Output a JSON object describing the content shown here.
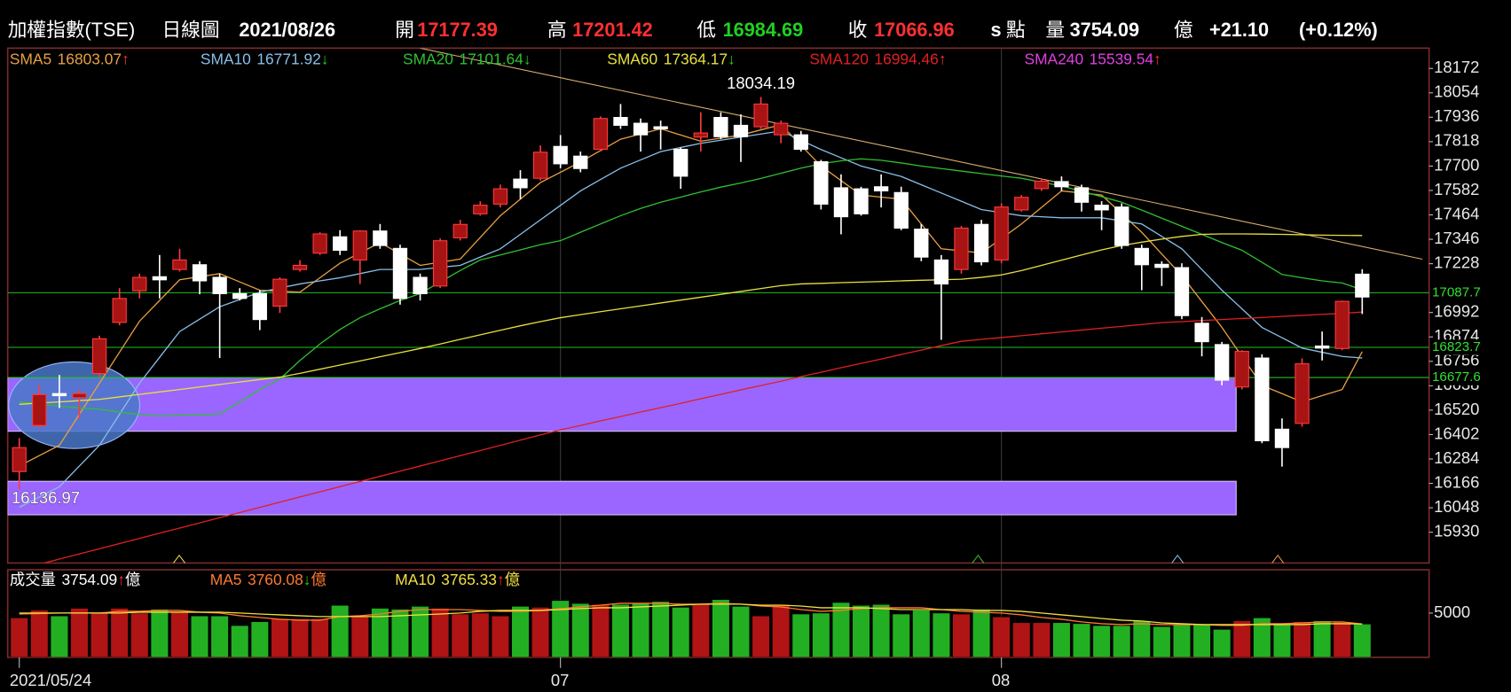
{
  "header": {
    "title": "加權指數(TSE)",
    "period": "日線圖",
    "date": "2021/08/26",
    "open_label": "開",
    "high_label": "高",
    "low_label": "低",
    "close_label": "收",
    "s_label": "s",
    "unit_label": "點",
    "volume_label": "量",
    "volume_unit": "億",
    "change": "+21.10",
    "change_pct": "(+0.12%)"
  },
  "chart_data": [
    {
      "type": "candlestick",
      "categories": [
        "2021/05/24",
        null,
        null,
        null,
        null,
        null,
        null,
        null,
        null,
        null,
        null,
        null,
        null,
        null,
        null,
        null,
        null,
        null,
        null,
        null,
        null,
        null,
        null,
        null,
        null,
        null,
        null,
        "07",
        null,
        null,
        null,
        null,
        null,
        null,
        null,
        null,
        null,
        null,
        null,
        null,
        null,
        null,
        null,
        null,
        null,
        null,
        null,
        null,
        null,
        "08",
        null,
        null,
        null,
        null,
        null,
        null,
        null,
        null,
        null,
        null,
        null,
        null,
        null,
        null,
        null,
        null,
        null,
        null
      ],
      "open": [
        16223,
        16446,
        16600,
        16580,
        16697,
        16944,
        17097,
        17165,
        17200,
        17223,
        17162,
        17083,
        17083,
        17023,
        17200,
        17279,
        17358,
        17246,
        17386,
        17302,
        17162,
        17120,
        17353,
        17469,
        17516,
        17637,
        17641,
        17795,
        17748,
        17781,
        17935,
        17907,
        17890,
        17781,
        17840,
        17935,
        17897,
        17890,
        17851,
        17851,
        17721,
        17595,
        17590,
        17600,
        17572,
        17395,
        17246,
        17200,
        17418,
        17246,
        17488,
        17591,
        17625,
        17595,
        17511,
        17502,
        17302,
        17225,
        17209,
        16940,
        16837,
        16632,
        16772,
        16428,
        16456,
        16830,
        16818,
        17177.39
      ],
      "high": [
        16385,
        16641,
        16690,
        16620,
        16880,
        17110,
        17180,
        17270,
        17300,
        17240,
        17180,
        17110,
        17100,
        17162,
        17245,
        17380,
        17390,
        17390,
        17420,
        17320,
        17180,
        17350,
        17440,
        17530,
        17610,
        17680,
        17800,
        17850,
        17770,
        17940,
        18000,
        17930,
        17920,
        17790,
        17960,
        17960,
        17950,
        18034.19,
        17920,
        17870,
        17730,
        17660,
        17600,
        17660,
        17600,
        17420,
        17270,
        17410,
        17440,
        17520,
        17560,
        17640,
        17650,
        17610,
        17530,
        17520,
        17320,
        17240,
        17230,
        16970,
        16850,
        16810,
        16790,
        16480,
        16770,
        16900,
        17050,
        17201.42
      ],
      "low": [
        16136.97,
        16432,
        16530,
        16480,
        16680,
        16930,
        17060,
        17060,
        17190,
        17080,
        16772,
        17050,
        16907,
        16990,
        17190,
        17270,
        17270,
        17130,
        17300,
        17030,
        17050,
        17110,
        17340,
        17460,
        17500,
        17540,
        17630,
        17690,
        17670,
        17770,
        17880,
        17770,
        17780,
        17590,
        17770,
        17830,
        17720,
        17880,
        17810,
        17770,
        17490,
        17370,
        17460,
        17500,
        17390,
        17240,
        16860,
        17180,
        17220,
        17230,
        17480,
        17580,
        17580,
        17480,
        17390,
        17300,
        17100,
        17120,
        16960,
        16780,
        16640,
        16620,
        16360,
        16247,
        16440,
        16760,
        16810,
        16984.69
      ],
      "close": [
        16339,
        16595,
        16590,
        16600,
        16865,
        17060,
        17162,
        17150,
        17246,
        17145,
        17083,
        17060,
        16958,
        17153,
        17220,
        17372,
        17293,
        17386,
        17316,
        17060,
        17083,
        17339,
        17418,
        17511,
        17590,
        17595,
        17767,
        17711,
        17688,
        17930,
        17897,
        17851,
        17880,
        17651,
        17860,
        17842,
        17842,
        18000,
        17907,
        17781,
        17516,
        17455,
        17469,
        17580,
        17400,
        17260,
        17130,
        17400,
        17237,
        17502,
        17549,
        17627,
        17600,
        17525,
        17488,
        17316,
        17223,
        17210,
        16977,
        16851,
        16665,
        16804,
        16372,
        16339,
        16744,
        16820,
        17046,
        17066.96
      ],
      "up_color": "#a81414",
      "up_edge": "#ff3a3a",
      "down_color": "#ffffff",
      "ylim": [
        15781,
        18270
      ],
      "yticks": [
        15930,
        16048,
        16166,
        16284,
        16402,
        16520,
        16638,
        16756,
        16874,
        16992,
        17228,
        17346,
        17464,
        17582,
        17700,
        17818,
        17936,
        18054,
        18172
      ],
      "moving_averages": [
        {
          "name": "SMA5",
          "color": "#e8a040",
          "arrow": {
            "text": "↑",
            "color": "#ff3030"
          },
          "values": [
            16250,
            16300,
            16350,
            16500,
            16650,
            16800,
            16950,
            17050,
            17150,
            17165,
            17180,
            17140,
            17100,
            17095,
            17090,
            17160,
            17230,
            17280,
            17330,
            17275,
            17220,
            17235,
            17250,
            17355,
            17460,
            17540,
            17620,
            17670,
            17720,
            17775,
            17830,
            17855,
            17880,
            17850,
            17820,
            17835,
            17850,
            17875,
            17900,
            17800,
            17700,
            17630,
            17560,
            17550,
            17540,
            17420,
            17300,
            17290,
            17280,
            17350,
            17420,
            17500,
            17580,
            17570,
            17560,
            17470,
            17380,
            17275,
            17170,
            17045,
            16920,
            16780,
            16640,
            16600,
            16560,
            16590,
            16620,
            16803.07
          ]
        },
        {
          "name": "SMA10",
          "color": "#88bfe8",
          "arrow": {
            "text": "↓",
            "color": "#20d020"
          },
          "values": [
            16050,
            16100,
            16150,
            16250,
            16350,
            16500,
            16650,
            16775,
            16900,
            16960,
            17020,
            17055,
            17090,
            17110,
            17130,
            17145,
            17160,
            17180,
            17200,
            17200,
            17200,
            17210,
            17220,
            17260,
            17300,
            17370,
            17440,
            17510,
            17580,
            17635,
            17690,
            17730,
            17770,
            17790,
            17810,
            17825,
            17840,
            17855,
            17870,
            17825,
            17780,
            17740,
            17700,
            17675,
            17650,
            17610,
            17570,
            17530,
            17490,
            17475,
            17460,
            17455,
            17450,
            17450,
            17450,
            17435,
            17420,
            17360,
            17300,
            17200,
            17100,
            17010,
            16920,
            16870,
            16820,
            16800,
            16780,
            16771.92
          ]
        },
        {
          "name": "SMA20",
          "color": "#30c030",
          "arrow": {
            "text": "↓",
            "color": "#20d020"
          },
          "values": [
            16560,
            16550,
            16540,
            16530,
            16525,
            16510,
            16500,
            16493,
            16495,
            16498,
            16502,
            16560,
            16620,
            16670,
            16760,
            16840,
            16910,
            16967,
            17010,
            17050,
            17083,
            17140,
            17195,
            17246,
            17270,
            17295,
            17320,
            17339,
            17380,
            17420,
            17460,
            17495,
            17525,
            17550,
            17575,
            17598,
            17618,
            17640,
            17665,
            17690,
            17711,
            17725,
            17735,
            17728,
            17715,
            17700,
            17688,
            17676,
            17664,
            17652,
            17641,
            17622,
            17604,
            17578,
            17552,
            17525,
            17487,
            17448,
            17409,
            17370,
            17330,
            17293,
            17235,
            17176,
            17160,
            17145,
            17135,
            17101.64
          ]
        },
        {
          "name": "SMA60",
          "color": "#e8e040",
          "arrow": {
            "text": "↓",
            "color": "#20d020"
          },
          "values": [
            16548,
            16554,
            16560,
            16566,
            16572,
            16584,
            16596,
            16608,
            16620,
            16632,
            16644,
            16656,
            16668,
            16680,
            16698,
            16718,
            16738,
            16758,
            16778,
            16798,
            16818,
            16840,
            16862,
            16884,
            16906,
            16928,
            16948,
            16967,
            16982,
            16996,
            17010,
            17024,
            17038,
            17052,
            17066,
            17080,
            17094,
            17108,
            17122,
            17130,
            17133,
            17136,
            17139,
            17142,
            17145,
            17148,
            17150,
            17153,
            17162,
            17174,
            17195,
            17220,
            17245,
            17270,
            17295,
            17316,
            17332,
            17347,
            17360,
            17370,
            17372,
            17372,
            17371,
            17370,
            17368,
            17366,
            17365,
            17364.17
          ]
        },
        {
          "name": "SMA120",
          "color": "#e02020",
          "arrow": {
            "text": "↑",
            "color": "#ff3030"
          },
          "values": [
            15750,
            15775,
            15800,
            15825,
            15850,
            15875,
            15900,
            15925,
            15950,
            15975,
            16000,
            16025,
            16050,
            16075,
            16100,
            16125,
            16150,
            16175,
            16200,
            16225,
            16250,
            16275,
            16300,
            16325,
            16350,
            16375,
            16400,
            16425,
            16446,
            16468,
            16489,
            16511,
            16532,
            16553,
            16575,
            16596,
            16618,
            16639,
            16660,
            16682,
            16703,
            16725,
            16746,
            16767,
            16789,
            16810,
            16832,
            16853,
            16862,
            16871,
            16880,
            16889,
            16898,
            16907,
            16916,
            16925,
            16934,
            16943,
            16948,
            16953,
            16958,
            16963,
            16968,
            16973,
            16978,
            16983,
            16988,
            16994.46
          ]
        },
        {
          "name": "SMA240",
          "color": "#e040e0",
          "arrow": {
            "text": "↑",
            "color": "#ff3030"
          },
          "last": 15539.54
        }
      ],
      "levels": [
        {
          "value": 17087.7,
          "color": "#20c020"
        },
        {
          "value": 16823.7,
          "color": "#20c020"
        },
        {
          "value": 16677.6,
          "color": "#20c020"
        }
      ],
      "zones": [
        {
          "low": 16418,
          "high": 16677.6,
          "start": 0,
          "end": 61,
          "color": "#9a66ff"
        },
        {
          "low": 16014,
          "high": 16176,
          "start": 0,
          "end": 61,
          "color": "#9a66ff"
        }
      ],
      "trend_line": {
        "index": [
          20,
          70
        ],
        "values": [
          18270,
          17250
        ],
        "color": "#d8b070"
      }
    },
    {
      "type": "bar",
      "title": "成交量",
      "unit": "億",
      "arrow": {
        "text": "↑",
        "color": "#ff3030"
      },
      "values": [
        4457,
        5326,
        4674,
        5543,
        5000,
        5543,
        5000,
        5435,
        5109,
        4674,
        4674,
        3587,
        4022,
        4348,
        4348,
        4348,
        5870,
        4674,
        5543,
        5435,
        5761,
        5543,
        4891,
        5000,
        4674,
        5761,
        5652,
        6413,
        6087,
        5978,
        5978,
        6087,
        6304,
        5652,
        5978,
        6522,
        5761,
        4674,
        5870,
        4891,
        5000,
        6196,
        5870,
        5978,
        4891,
        5326,
        5000,
        4891,
        5435,
        4565,
        3913,
        3913,
        3913,
        3804,
        3587,
        3587,
        4130,
        3478,
        3696,
        3696,
        3152,
        4130,
        4457,
        3696,
        4022,
        4130,
        4022,
        3754.09
      ],
      "up_color": "#b01414",
      "down_color": "#22b022",
      "ylim": [
        0,
        9900
      ],
      "yticks": [
        5000
      ],
      "moving_averages": [
        {
          "name": "MA5",
          "color": "#ff7a30",
          "arrow": {
            "text": "↓",
            "color": "#20d020"
          },
          "values": [
            4900,
            4950,
            5000,
            5000,
            5000,
            5200,
            5200,
            5300,
            5300,
            5100,
            5000,
            4700,
            4500,
            4300,
            4200,
            4200,
            4600,
            4700,
            4900,
            5200,
            5400,
            5400,
            5400,
            5300,
            5200,
            5200,
            5300,
            5500,
            5700,
            5900,
            6100,
            6100,
            6100,
            6000,
            6000,
            6100,
            6000,
            5800,
            5700,
            5400,
            5200,
            5300,
            5500,
            5600,
            5600,
            5600,
            5400,
            5200,
            5100,
            5000,
            4800,
            4500,
            4300,
            4000,
            3800,
            3700,
            3800,
            3700,
            3700,
            3700,
            3600,
            3600,
            3800,
            3800,
            3900,
            4000,
            4000,
            3760.08
          ]
        },
        {
          "name": "MA10",
          "color": "#f0e040",
          "arrow": {
            "text": "↑",
            "color": "#ff3030"
          },
          "values": [
            5000,
            5000,
            5000,
            5000,
            5000,
            5000,
            5100,
            5100,
            5100,
            5100,
            5100,
            5000,
            4900,
            4800,
            4700,
            4600,
            4600,
            4600,
            4600,
            4700,
            4800,
            4900,
            5000,
            5200,
            5300,
            5300,
            5300,
            5400,
            5500,
            5600,
            5600,
            5700,
            5800,
            5900,
            6000,
            6000,
            6000,
            5900,
            5900,
            5800,
            5600,
            5600,
            5600,
            5500,
            5400,
            5400,
            5400,
            5400,
            5300,
            5300,
            5200,
            5000,
            4800,
            4600,
            4400,
            4200,
            4100,
            3900,
            3800,
            3700,
            3700,
            3700,
            3700,
            3700,
            3700,
            3800,
            3800,
            3765.33
          ]
        }
      ]
    }
  ]
}
